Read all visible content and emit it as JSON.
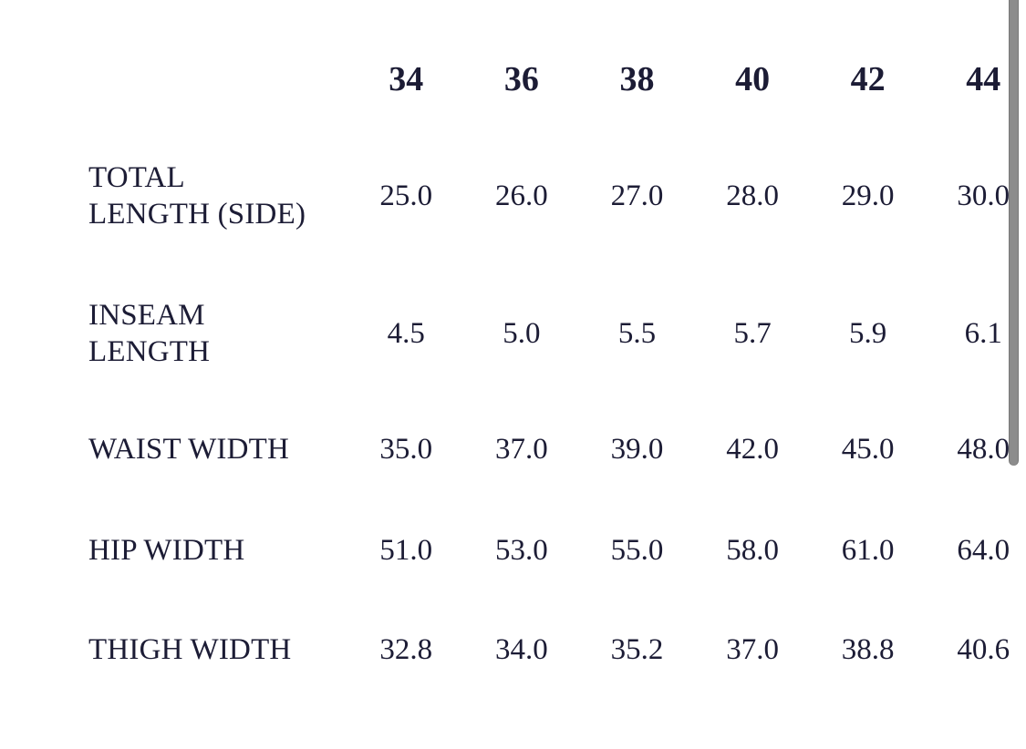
{
  "size_chart": {
    "columns": [
      "34",
      "36",
      "38",
      "40",
      "42",
      "44"
    ],
    "rows": [
      {
        "label": "TOTAL LENGTH (SIDE)",
        "label_lines": [
          "TOTAL",
          "LENGTH (SIDE)"
        ],
        "values": [
          "25.0",
          "26.0",
          "27.0",
          "28.0",
          "29.0",
          "30.0"
        ]
      },
      {
        "label": "INSEAM LENGTH",
        "label_lines": [
          "INSEAM",
          "LENGTH"
        ],
        "values": [
          "4.5",
          "5.0",
          "5.5",
          "5.7",
          "5.9",
          "6.1"
        ]
      },
      {
        "label": "WAIST WIDTH",
        "label_lines": [
          "WAIST WIDTH"
        ],
        "values": [
          "35.0",
          "37.0",
          "39.0",
          "42.0",
          "45.0",
          "48.0"
        ]
      },
      {
        "label": "HIP WIDTH",
        "label_lines": [
          "HIP WIDTH"
        ],
        "values": [
          "51.0",
          "53.0",
          "55.0",
          "58.0",
          "61.0",
          "64.0"
        ]
      },
      {
        "label": "THIGH WIDTH",
        "label_lines": [
          "THIGH WIDTH"
        ],
        "values": [
          "32.8",
          "34.0",
          "35.2",
          "37.0",
          "38.8",
          "40.6"
        ]
      }
    ]
  },
  "colors": {
    "text_navy": "#1c1c35",
    "background": "#ffffff",
    "scrollbar_thumb": "#8c8c8c"
  }
}
